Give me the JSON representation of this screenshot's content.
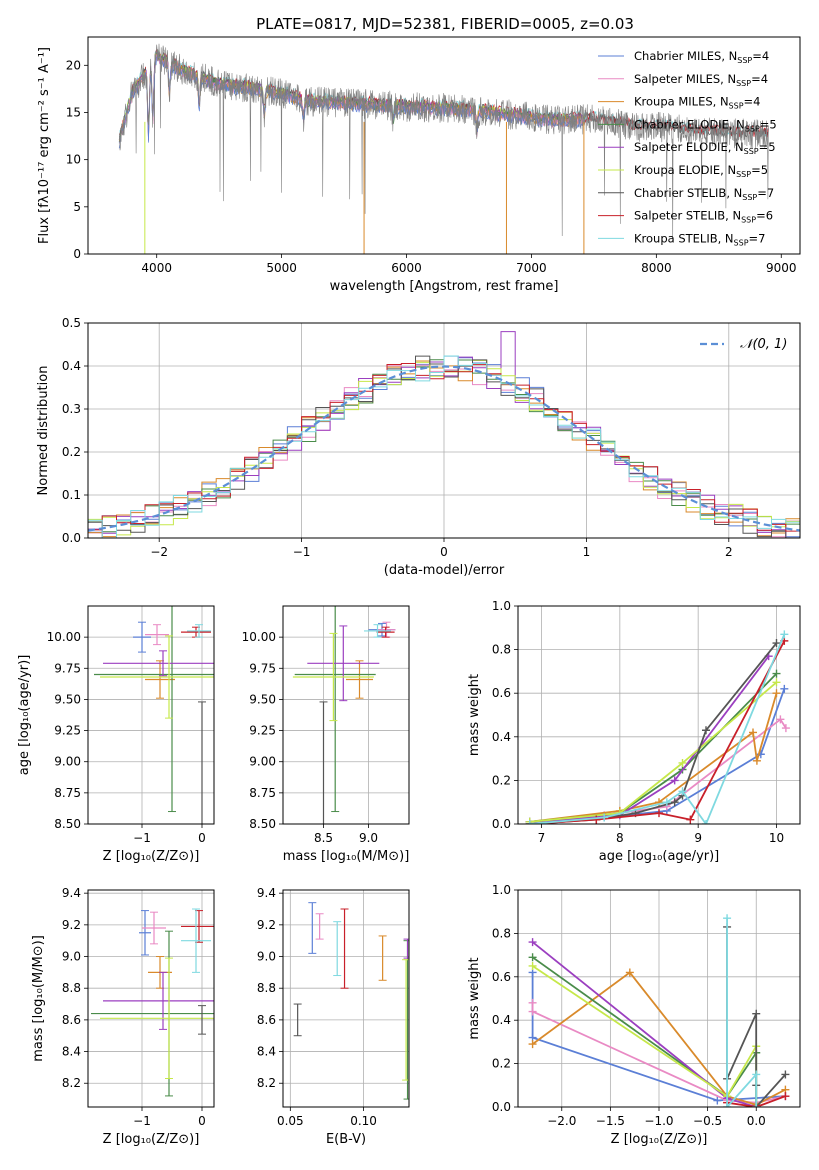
{
  "title": "PLATE=0817, MJD=52381, FIBERID=0005, z=0.03",
  "colors": {
    "Chabrier MILES": "#5b7fd6",
    "Salpeter MILES": "#e98ac4",
    "Kroupa MILES": "#d98a2b",
    "Chabrier ELODIE": "#4a8c4a",
    "Salpeter ELODIE": "#9b3fc0",
    "Kroupa ELODIE": "#c6e84a",
    "Chabrier STELIB": "#555555",
    "Salpeter STELIB": "#c8202a",
    "Kroupa STELIB": "#7fd9e0",
    "normal": "#5b8fd6"
  },
  "chart_data": [
    {
      "id": "spectrum",
      "type": "line",
      "xlabel": "wavelength [Angstrom, rest frame]",
      "ylabel": "Flux [fλ10⁻¹⁷ erg cm⁻² s⁻¹ A⁻¹]",
      "xlim": [
        3450,
        9150
      ],
      "ylim": [
        0,
        23
      ],
      "xticks": [
        "4000",
        "5000",
        "6000",
        "7000",
        "8000",
        "9000"
      ],
      "yticks": [
        "0",
        "5",
        "10",
        "15",
        "20"
      ],
      "legend": "top-right",
      "series": [
        {
          "name": "Chabrier MILES, N_SSP=4",
          "sub": "SSP",
          "eq": "=4"
        },
        {
          "name": "Salpeter MILES, N_SSP=4",
          "sub": "SSP",
          "eq": "=4"
        },
        {
          "name": "Kroupa MILES, N_SSP=4",
          "sub": "SSP",
          "eq": "=4"
        },
        {
          "name": "Chabrier ELODIE, N_SSP=5",
          "sub": "SSP",
          "eq": "=5"
        },
        {
          "name": "Salpeter ELODIE, N_SSP=5",
          "sub": "SSP",
          "eq": "=5"
        },
        {
          "name": "Kroupa ELODIE, N_SSP=5",
          "sub": "SSP",
          "eq": "=5"
        },
        {
          "name": "Chabrier STELIB, N_SSP=7",
          "sub": "SSP",
          "eq": "=7"
        },
        {
          "name": "Salpeter STELIB, N_SSP=6",
          "sub": "SSP",
          "eq": "=6"
        },
        {
          "name": "Kroupa STELIB, N_SSP=7",
          "sub": "SSP",
          "eq": "=7"
        }
      ],
      "legend_labels": [
        "Chabrier MILES",
        "Salpeter MILES",
        "Kroupa MILES",
        "Chabrier ELODIE",
        "Salpeter ELODIE",
        "Kroupa ELODIE",
        "Chabrier STELIB",
        "Salpeter STELIB",
        "Kroupa STELIB"
      ],
      "data_curve": {
        "name": "data",
        "x": [
          3700,
          3800,
          3900,
          4000,
          4200,
          4500,
          4800,
          5000,
          5200,
          5500,
          5800,
          6000,
          6300,
          6500,
          6700,
          7000,
          7200,
          7500,
          7800,
          8000,
          8300,
          8600,
          8900
        ],
        "y": [
          12,
          17,
          19,
          21,
          19.5,
          18,
          17.5,
          17,
          16.2,
          16,
          15.8,
          15.6,
          15.5,
          15.3,
          15,
          14.5,
          14.2,
          14.3,
          13.5,
          13.5,
          13,
          12.8,
          12.7
        ]
      }
    },
    {
      "id": "residuals",
      "type": "histogram",
      "xlabel": "(data-model)/error",
      "ylabel": "Normed distribution",
      "xlim": [
        -2.5,
        2.5
      ],
      "ylim": [
        0,
        0.5
      ],
      "xticks": [
        "−2",
        "−1",
        "0",
        "1",
        "2"
      ],
      "yticks": [
        "0.0",
        "0.1",
        "0.2",
        "0.3",
        "0.4",
        "0.5"
      ],
      "legend_label": "𝒩(0, 1)",
      "bin_width": 0.1
    },
    {
      "id": "age_vs_Z",
      "type": "errorbar",
      "xlabel": "Z [log₁₀(Z/Z⊙)]",
      "ylabel": "age  [log₁₀(age/yr)]",
      "xlim": [
        -1.9,
        0.2
      ],
      "ylim": [
        8.5,
        10.25
      ],
      "xticks": [
        "−1",
        "0"
      ],
      "yticks": [
        "8.50",
        "8.75",
        "9.00",
        "9.25",
        "9.50",
        "9.75",
        "10.00"
      ],
      "points": [
        {
          "m": "Chabrier MILES",
          "x": -1.0,
          "xe": 0.15,
          "y": 10.0,
          "ye": 0.12
        },
        {
          "m": "Salpeter MILES",
          "x": -0.75,
          "xe": 0.2,
          "y": 10.02,
          "ye": 0.08
        },
        {
          "m": "Kroupa MILES",
          "x": -0.7,
          "xe": 0.25,
          "y": 9.66,
          "ye": 0.15
        },
        {
          "m": "Chabrier ELODIE",
          "x": -0.5,
          "xe": 1.3,
          "y": 9.7,
          "ye": 1.1
        },
        {
          "m": "Salpeter ELODIE",
          "x": -0.65,
          "xe": 1.0,
          "y": 9.79,
          "ye": 0.1
        },
        {
          "m": "Kroupa ELODIE",
          "x": -0.55,
          "xe": 1.15,
          "y": 9.68,
          "ye": 0.33
        },
        {
          "m": "Chabrier STELIB",
          "x": 0.0,
          "xe": 0.0,
          "y": 8.96,
          "ye": 0.52
        },
        {
          "m": "Salpeter STELIB",
          "x": -0.1,
          "xe": 0.25,
          "y": 10.04,
          "ye": 0.04
        },
        {
          "m": "Kroupa STELIB",
          "x": -0.05,
          "xe": 0.2,
          "y": 10.05,
          "ye": 0.05
        }
      ]
    },
    {
      "id": "age_vs_mass",
      "type": "errorbar",
      "xlabel": "mass [log₁₀(M/M⊙)]",
      "ylabel": "",
      "xlim": [
        8.05,
        9.45
      ],
      "ylim": [
        8.5,
        10.25
      ],
      "xticks": [
        "8.5",
        "9.0"
      ],
      "yticks": [
        "8.50",
        "8.75",
        "9.00",
        "9.25",
        "9.50",
        "9.75",
        "10.00"
      ],
      "points": [
        {
          "m": "Chabrier MILES",
          "x": 9.15,
          "xe": 0.15,
          "y": 10.06,
          "ye": 0.05
        },
        {
          "m": "Salpeter MILES",
          "x": 9.2,
          "xe": 0.1,
          "y": 10.06,
          "ye": 0.06
        },
        {
          "m": "Kroupa MILES",
          "x": 8.9,
          "xe": 0.15,
          "y": 9.66,
          "ye": 0.15
        },
        {
          "m": "Chabrier ELODIE",
          "x": 8.63,
          "xe": 0.45,
          "y": 9.7,
          "ye": 1.1
        },
        {
          "m": "Salpeter ELODIE",
          "x": 8.72,
          "xe": 0.4,
          "y": 9.79,
          "ye": 0.3
        },
        {
          "m": "Kroupa ELODIE",
          "x": 8.61,
          "xe": 0.45,
          "y": 9.68,
          "ye": 0.35
        },
        {
          "m": "Chabrier STELIB",
          "x": 8.5,
          "xe": 0.0,
          "y": 8.96,
          "ye": 0.52
        },
        {
          "m": "Salpeter STELIB",
          "x": 9.19,
          "xe": 0.1,
          "y": 10.04,
          "ye": 0.04
        },
        {
          "m": "Kroupa STELIB",
          "x": 9.1,
          "xe": 0.15,
          "y": 10.05,
          "ye": 0.05
        }
      ]
    },
    {
      "id": "mw_vs_age",
      "type": "line",
      "xlabel": "age  [log₁₀(age/yr)]",
      "ylabel": "mass weight",
      "xlim": [
        6.7,
        10.3
      ],
      "ylim": [
        0,
        1.0
      ],
      "xticks": [
        "7",
        "8",
        "9",
        "10"
      ],
      "yticks": [
        "0.0",
        "0.2",
        "0.4",
        "0.6",
        "0.8",
        "1.0"
      ],
      "series": [
        {
          "m": "Chabrier MILES",
          "x": [
            6.85,
            7.8,
            8.6,
            9.8,
            10.1
          ],
          "y": [
            0.01,
            0.03,
            0.06,
            0.32,
            0.62
          ]
        },
        {
          "m": "Salpeter MILES",
          "x": [
            6.85,
            7.8,
            8.6,
            10.05,
            10.12
          ],
          "y": [
            0.01,
            0.04,
            0.08,
            0.48,
            0.44
          ]
        },
        {
          "m": "Kroupa MILES",
          "x": [
            6.85,
            8.0,
            8.5,
            9.7,
            9.75,
            10.0
          ],
          "y": [
            0.01,
            0.06,
            0.1,
            0.42,
            0.29,
            0.6
          ]
        },
        {
          "m": "Chabrier ELODIE",
          "x": [
            6.85,
            8.0,
            8.8,
            10.0
          ],
          "y": [
            0.01,
            0.05,
            0.25,
            0.69
          ]
        },
        {
          "m": "Salpeter ELODIE",
          "x": [
            6.85,
            8.0,
            8.7,
            9.9
          ],
          "y": [
            0.01,
            0.04,
            0.2,
            0.77
          ]
        },
        {
          "m": "Kroupa ELODIE",
          "x": [
            6.85,
            8.0,
            8.8,
            10.0
          ],
          "y": [
            0.01,
            0.05,
            0.28,
            0.65
          ]
        },
        {
          "m": "Chabrier STELIB",
          "x": [
            6.85,
            7.7,
            8.2,
            8.7,
            8.8,
            9.1,
            10.0
          ],
          "y": [
            0.0,
            0.02,
            0.05,
            0.1,
            0.13,
            0.43,
            0.83
          ]
        },
        {
          "m": "Salpeter STELIB",
          "x": [
            6.85,
            7.7,
            8.5,
            8.9,
            10.1
          ],
          "y": [
            0.0,
            0.02,
            0.05,
            0.02,
            0.84
          ]
        },
        {
          "m": "Kroupa STELIB",
          "x": [
            6.85,
            7.8,
            8.6,
            8.8,
            9.1,
            10.1
          ],
          "y": [
            0.0,
            0.03,
            0.1,
            0.15,
            0.0,
            0.87
          ]
        }
      ]
    },
    {
      "id": "mass_vs_Z",
      "type": "errorbar",
      "xlabel": "Z [log₁₀(Z/Z⊙)]",
      "ylabel": "mass [log₁₀(M/M⊙)]",
      "xlim": [
        -1.9,
        0.2
      ],
      "ylim": [
        8.05,
        9.42
      ],
      "xticks": [
        "−1",
        "0"
      ],
      "yticks": [
        "8.2",
        "8.4",
        "8.6",
        "8.8",
        "9.0",
        "9.2",
        "9.4"
      ],
      "points": [
        {
          "m": "Chabrier MILES",
          "x": -0.95,
          "xe": 0.1,
          "y": 9.15,
          "ye": 0.14
        },
        {
          "m": "Salpeter MILES",
          "x": -0.8,
          "xe": 0.2,
          "y": 9.18,
          "ye": 0.1
        },
        {
          "m": "Kroupa MILES",
          "x": -0.7,
          "xe": 0.2,
          "y": 8.9,
          "ye": 0.1
        },
        {
          "m": "Chabrier ELODIE",
          "x": -0.55,
          "xe": 1.3,
          "y": 8.64,
          "ye": 0.52
        },
        {
          "m": "Salpeter ELODIE",
          "x": -0.65,
          "xe": 1.0,
          "y": 8.72,
          "ye": 0.18
        },
        {
          "m": "Kroupa ELODIE",
          "x": -0.55,
          "xe": 1.15,
          "y": 8.61,
          "ye": 0.38
        },
        {
          "m": "Chabrier STELIB",
          "x": 0.0,
          "xe": 0.0,
          "y": 8.6,
          "ye": 0.09
        },
        {
          "m": "Salpeter STELIB",
          "x": -0.05,
          "xe": 0.3,
          "y": 9.19,
          "ye": 0.1
        },
        {
          "m": "Kroupa STELIB",
          "x": -0.1,
          "xe": 0.25,
          "y": 9.1,
          "ye": 0.2
        }
      ]
    },
    {
      "id": "mass_vs_ebv",
      "type": "errorbar",
      "xlabel": "E(B-V)",
      "ylabel": "",
      "xlim": [
        0.045,
        0.131
      ],
      "ylim": [
        8.05,
        9.42
      ],
      "xticks": [
        "0.05",
        "0.10"
      ],
      "yticks": [
        "8.2",
        "8.4",
        "8.6",
        "8.8",
        "9.0",
        "9.2",
        "9.4"
      ],
      "points": [
        {
          "m": "Chabrier MILES",
          "x": 0.065,
          "xe": 0,
          "y": 9.18,
          "ye": 0.16
        },
        {
          "m": "Salpeter MILES",
          "x": 0.07,
          "xe": 0,
          "y": 9.19,
          "ye": 0.08
        },
        {
          "m": "Kroupa MILES",
          "x": 0.113,
          "xe": 0,
          "y": 8.99,
          "ye": 0.14
        },
        {
          "m": "Chabrier ELODIE",
          "x": 0.13,
          "xe": 0,
          "y": 8.6,
          "ye": 0.5
        },
        {
          "m": "Salpeter ELODIE",
          "x": 0.13,
          "xe": 0,
          "y": 9.05,
          "ye": 0.06
        },
        {
          "m": "Kroupa ELODIE",
          "x": 0.129,
          "xe": 0,
          "y": 8.6,
          "ye": 0.38
        },
        {
          "m": "Chabrier STELIB",
          "x": 0.055,
          "xe": 0,
          "y": 8.6,
          "ye": 0.1
        },
        {
          "m": "Salpeter STELIB",
          "x": 0.087,
          "xe": 0,
          "y": 9.05,
          "ye": 0.25
        },
        {
          "m": "Kroupa STELIB",
          "x": 0.082,
          "xe": 0,
          "y": 9.05,
          "ye": 0.17
        }
      ]
    },
    {
      "id": "mw_vs_Z",
      "type": "line",
      "xlabel": "Z [log₁₀(Z/Z⊙)]",
      "ylabel": "mass weight",
      "xlim": [
        -2.45,
        0.45
      ],
      "ylim": [
        0,
        1.0
      ],
      "xticks": [
        "−2.0",
        "−1.5",
        "−1.0",
        "−0.5",
        "0.0"
      ],
      "yticks": [
        "0.0",
        "0.2",
        "0.4",
        "0.6",
        "0.8",
        "1.0"
      ],
      "series": [
        {
          "m": "Chabrier MILES",
          "x": [
            -2.3,
            -2.3,
            -0.4,
            0.3
          ],
          "y": [
            0.62,
            0.32,
            0.03,
            0.05
          ]
        },
        {
          "m": "Salpeter MILES",
          "x": [
            -2.3,
            -2.3,
            -0.3,
            0.0,
            0.3
          ],
          "y": [
            0.48,
            0.44,
            0.03,
            0.02,
            0.05
          ]
        },
        {
          "m": "Kroupa MILES",
          "x": [
            -2.3,
            -1.3,
            -0.3,
            0.0,
            0.3
          ],
          "y": [
            0.29,
            0.62,
            0.05,
            0.01,
            0.08
          ]
        },
        {
          "m": "Chabrier ELODIE",
          "x": [
            -2.3,
            -0.3,
            0.0,
            0.0
          ],
          "y": [
            0.69,
            0.05,
            0.25,
            0.0
          ]
        },
        {
          "m": "Salpeter ELODIE",
          "x": [
            -2.3,
            -0.3,
            0.0
          ],
          "y": [
            0.76,
            0.04,
            0.0
          ]
        },
        {
          "m": "Kroupa ELODIE",
          "x": [
            -2.3,
            -0.3,
            0.0,
            0.0
          ],
          "y": [
            0.65,
            0.05,
            0.28,
            0.0
          ]
        },
        {
          "m": "Chabrier STELIB",
          "x": [
            -0.3,
            -0.3,
            0.0,
            0.0,
            0.0,
            0.3
          ],
          "y": [
            0.83,
            0.13,
            0.43,
            0.1,
            0.0,
            0.15
          ]
        },
        {
          "m": "Salpeter STELIB",
          "x": [
            -0.3,
            0.0,
            0.3
          ],
          "y": [
            0.02,
            0.0,
            0.05
          ]
        },
        {
          "m": "Kroupa STELIB",
          "x": [
            -0.3,
            -0.3,
            0.0,
            0.0
          ],
          "y": [
            0.87,
            0.0,
            0.15,
            0.0
          ]
        }
      ]
    }
  ]
}
